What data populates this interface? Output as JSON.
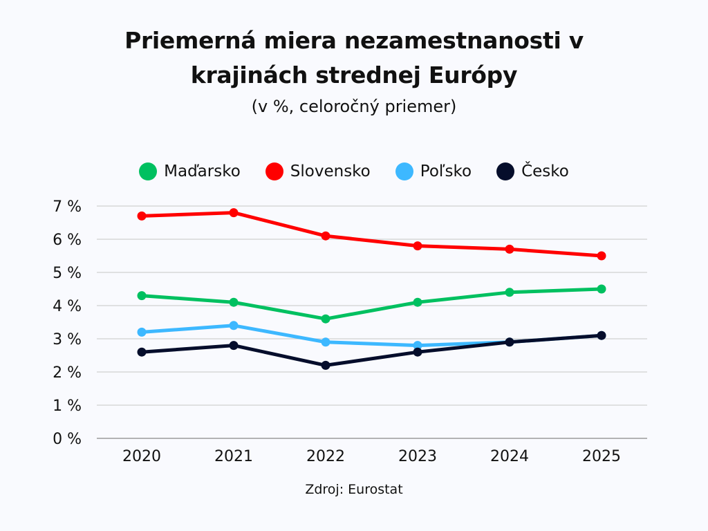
{
  "title_line1": "Priemerná miera nezamestnanosti v",
  "title_line2": "krajinách strednej Európy",
  "subtitle": "(v %, celoročný priemer)",
  "source": "Zdroj: Eurostat",
  "chart_data": {
    "type": "line",
    "title": "Priemerná miera nezamestnanosti v krajinách strednej Európy",
    "subtitle": "(v %, celoročný priemer)",
    "xlabel": "",
    "ylabel": "",
    "x": [
      "2020",
      "2021",
      "2022",
      "2023",
      "2024",
      "2025"
    ],
    "ylim": [
      0,
      7
    ],
    "yticks": [
      0,
      1,
      2,
      3,
      4,
      5,
      6,
      7
    ],
    "ytick_labels": [
      "0 %",
      "1 %",
      "2 %",
      "3 %",
      "4 %",
      "5 %",
      "6 %",
      "7 %"
    ],
    "grid": true,
    "legend_position": "top-center",
    "series": [
      {
        "name": "Maďarsko",
        "color": "#00c060",
        "values": [
          4.3,
          4.1,
          3.6,
          4.1,
          4.4,
          4.5
        ]
      },
      {
        "name": "Slovensko",
        "color": "#ff0000",
        "values": [
          6.7,
          6.8,
          6.1,
          5.8,
          5.7,
          5.5
        ]
      },
      {
        "name": "Poľsko",
        "color": "#3db8ff",
        "values": [
          3.2,
          3.4,
          2.9,
          2.8,
          2.9,
          3.1
        ]
      },
      {
        "name": "Česko",
        "color": "#050d2b",
        "values": [
          2.6,
          2.8,
          2.2,
          2.6,
          2.9,
          3.1
        ]
      }
    ]
  }
}
